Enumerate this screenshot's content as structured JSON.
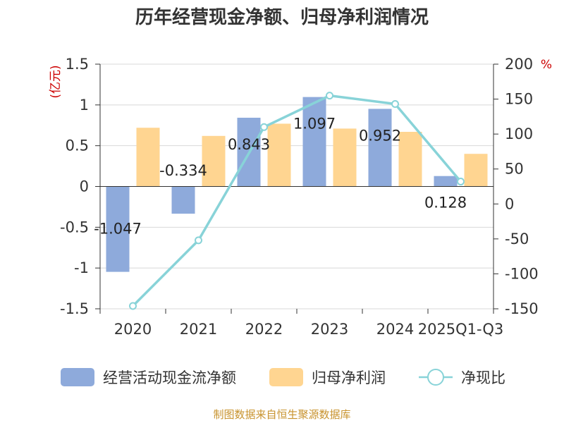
{
  "chart_data": {
    "type": "bar",
    "title": "历年经营现金净额、归母净利润情况",
    "categories": [
      "2020",
      "2021",
      "2022",
      "2023",
      "2024",
      "2025Q1-Q3"
    ],
    "series": [
      {
        "name": "经营活动现金流净额",
        "type": "bar",
        "axis": "left",
        "color": "#8eaadb",
        "values": [
          -1.047,
          -0.334,
          0.843,
          1.097,
          0.952,
          0.128
        ],
        "labels": [
          "-1.047",
          "-0.334",
          "0.843",
          "1.097",
          "0.952",
          "0.128"
        ]
      },
      {
        "name": "归母净利润",
        "type": "bar",
        "axis": "left",
        "color": "#ffd591",
        "values": [
          0.72,
          0.62,
          0.77,
          0.71,
          0.67,
          0.4
        ]
      },
      {
        "name": "净现比",
        "type": "line",
        "axis": "right",
        "color": "#88d3d8",
        "values": [
          -146,
          -52,
          110,
          155,
          143,
          32
        ]
      }
    ],
    "left_axis": {
      "unit": "(亿元)",
      "min": -1.5,
      "max": 1.5,
      "ticks": [
        "1.5",
        "1",
        "0.5",
        "0",
        "-0.5",
        "-1",
        "-1.5"
      ]
    },
    "right_axis": {
      "unit": "%",
      "min": -150,
      "max": 200,
      "ticks": [
        "200",
        "150",
        "100",
        "50",
        "0",
        "-50",
        "-100",
        "-150"
      ]
    },
    "grid": true,
    "legend_position": "bottom",
    "unit_color": "#cc0000"
  },
  "source_text": "制图数据来自恒生聚源数据库",
  "source_color": "#c8932e"
}
